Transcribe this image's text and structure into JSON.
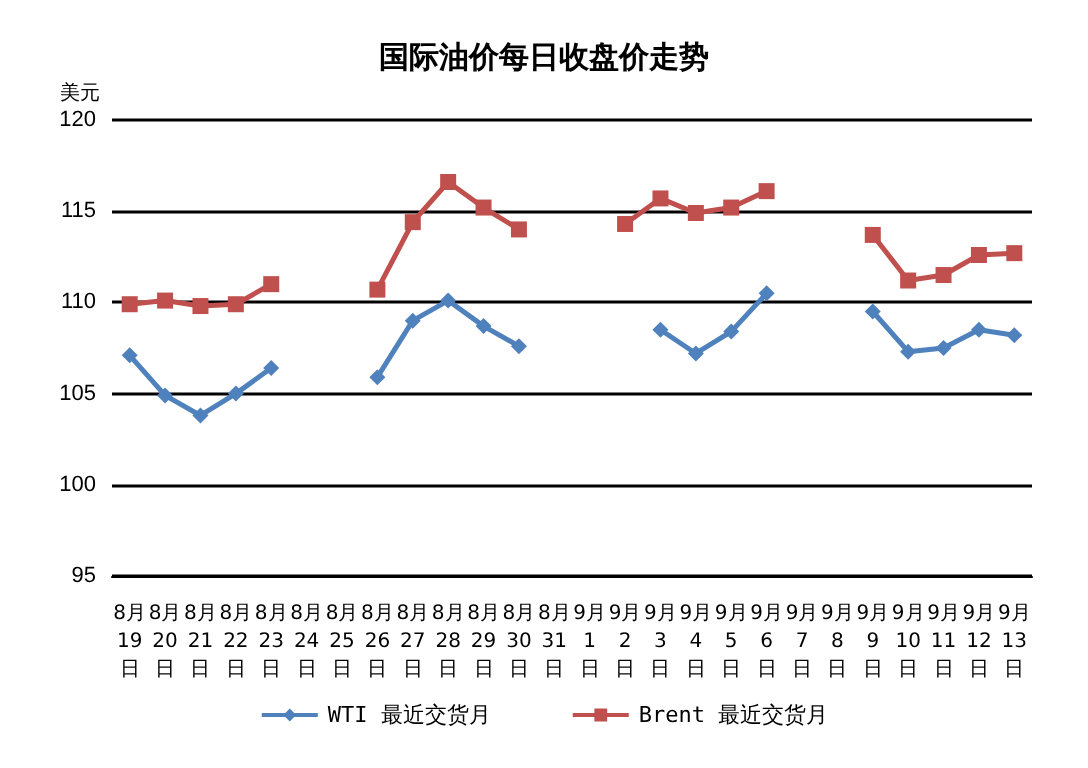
{
  "chart_data": {
    "type": "line",
    "title": "国际油价每日收盘价走势",
    "ylabel": "美元",
    "categories": [
      "8月19日",
      "8月20日",
      "8月21日",
      "8月22日",
      "8月23日",
      "8月24日",
      "8月25日",
      "8月26日",
      "8月27日",
      "8月28日",
      "8月29日",
      "8月30日",
      "8月31日",
      "9月1日",
      "9月2日",
      "9月3日",
      "9月4日",
      "9月5日",
      "9月6日",
      "9月7日",
      "9月8日",
      "9月9日",
      "9月10日",
      "9月11日",
      "9月12日",
      "9月13日"
    ],
    "series": [
      {
        "name": "WTI 最近交货月",
        "color": "#4f81bd",
        "marker": "diamond",
        "values": [
          107.1,
          104.9,
          103.8,
          105.0,
          106.4,
          null,
          null,
          105.9,
          109.0,
          110.1,
          108.7,
          107.6,
          null,
          null,
          null,
          108.5,
          107.2,
          108.4,
          110.5,
          null,
          null,
          109.5,
          107.3,
          107.5,
          108.5,
          108.2
        ]
      },
      {
        "name": "Brent 最近交货月",
        "color": "#c0504d",
        "marker": "square",
        "values": [
          109.9,
          110.1,
          109.8,
          109.9,
          111.0,
          null,
          null,
          110.7,
          114.4,
          116.6,
          115.2,
          114.0,
          null,
          null,
          114.3,
          115.7,
          114.9,
          115.2,
          116.1,
          null,
          null,
          113.7,
          111.2,
          111.5,
          112.6,
          112.7
        ]
      }
    ],
    "ylim": [
      95,
      120
    ],
    "yticks": [
      95,
      100,
      105,
      110,
      115,
      120
    ],
    "grid": "y",
    "legend": "bottom",
    "line_style": "solid"
  }
}
